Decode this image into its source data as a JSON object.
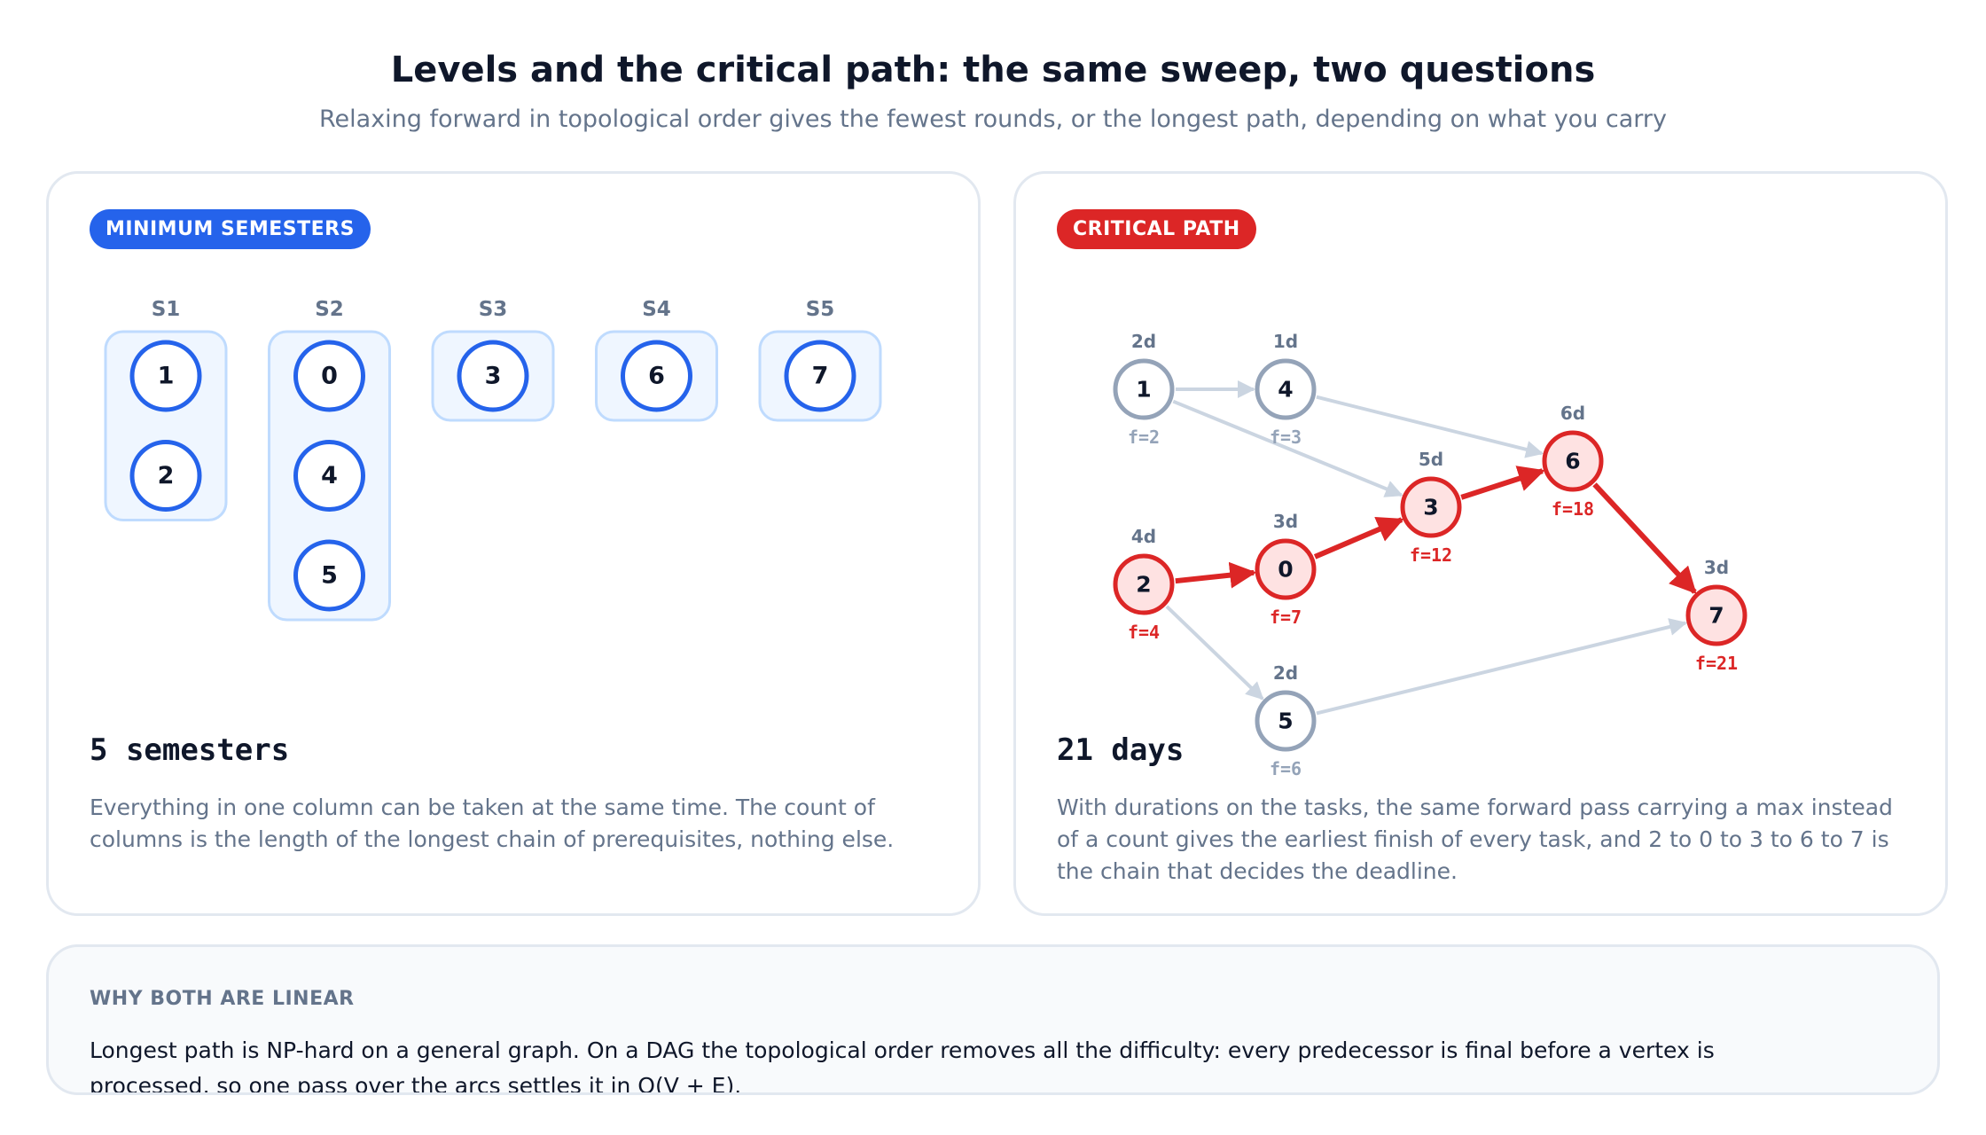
{
  "header": {
    "title": "Levels and the critical path: the same sweep, two questions",
    "subtitle": "Relaxing forward in topological order gives the fewest rounds, or the longest path, depending on what you carry"
  },
  "left_panel": {
    "badge": "MINIMUM SEMESTERS",
    "semesters": [
      {
        "label": "S1",
        "courses": [
          "1",
          "2"
        ]
      },
      {
        "label": "S2",
        "courses": [
          "0",
          "4",
          "5"
        ]
      },
      {
        "label": "S3",
        "courses": [
          "3"
        ]
      },
      {
        "label": "S4",
        "courses": [
          "6"
        ]
      },
      {
        "label": "S5",
        "courses": [
          "7"
        ]
      }
    ],
    "result": "5 semesters",
    "description": "Everything in one column can be taken at the same time. The count of columns is the length of the longest chain of prerequisites, nothing else."
  },
  "right_panel": {
    "badge": "CRITICAL PATH",
    "nodes": [
      {
        "id": "1",
        "duration": "2d",
        "finish": "f=2",
        "critical": false
      },
      {
        "id": "4",
        "duration": "1d",
        "finish": "f=3",
        "critical": false
      },
      {
        "id": "2",
        "duration": "4d",
        "finish": "f=4",
        "critical": true
      },
      {
        "id": "0",
        "duration": "3d",
        "finish": "f=7",
        "critical": true
      },
      {
        "id": "3",
        "duration": "5d",
        "finish": "f=12",
        "critical": true
      },
      {
        "id": "6",
        "duration": "6d",
        "finish": "f=18",
        "critical": true
      },
      {
        "id": "7",
        "duration": "3d",
        "finish": "f=21",
        "critical": true
      },
      {
        "id": "5",
        "duration": "2d",
        "finish": "f=6",
        "critical": false
      }
    ],
    "edges": [
      {
        "from": "1",
        "to": "4",
        "critical": false
      },
      {
        "from": "1",
        "to": "3",
        "critical": false
      },
      {
        "from": "4",
        "to": "6",
        "critical": false
      },
      {
        "from": "2",
        "to": "5",
        "critical": false
      },
      {
        "from": "5",
        "to": "7",
        "critical": false
      },
      {
        "from": "2",
        "to": "0",
        "critical": true
      },
      {
        "from": "0",
        "to": "3",
        "critical": true
      },
      {
        "from": "3",
        "to": "6",
        "critical": true
      },
      {
        "from": "6",
        "to": "7",
        "critical": true
      }
    ],
    "result": "21 days",
    "description": "With durations on the tasks, the same forward pass carrying a max instead of a count gives the earliest finish of every task, and 2 to 0 to 3 to 6 to 7 is the chain that decides the deadline."
  },
  "footer": {
    "heading": "WHY BOTH ARE LINEAR",
    "body": "Longest path is NP-hard on a general graph. On a DAG the topological order removes all the difficulty: every predecessor is final before a vertex is processed, so one pass over the arcs settles it in O(V + E)."
  },
  "colors": {
    "blue": "#2563eb",
    "blue_fill": "#eff6ff",
    "blue_border": "#bfdbfe",
    "red": "#dc2626",
    "red_fill": "#fee2e2",
    "gray_node": "#94a3b8",
    "gray_edge": "#cbd5e1",
    "muted_text": "#64748b"
  }
}
